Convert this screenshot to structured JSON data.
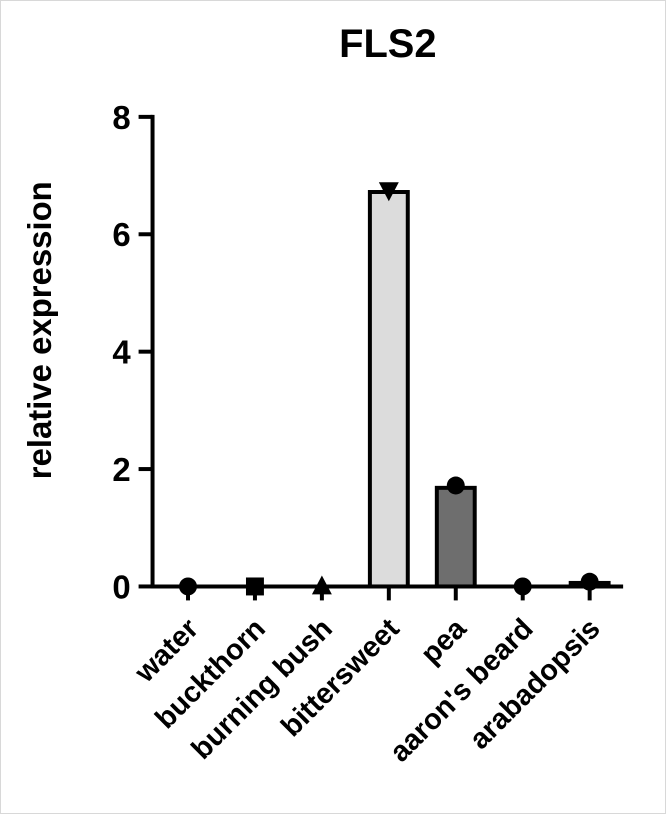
{
  "chart_data": {
    "type": "bar",
    "title": "FLS2",
    "xlabel": "",
    "ylabel": "relative expression",
    "ylim": [
      0,
      8
    ],
    "yticks": [
      0,
      2,
      4,
      6,
      8
    ],
    "grid": false,
    "categories": [
      "water",
      "buckthorn",
      "burning bush",
      "bittersweet",
      "pea",
      "aaron's beard",
      "arabadopsis"
    ],
    "values": [
      0,
      0,
      0,
      6.72,
      1.68,
      0,
      0.06
    ],
    "points": [
      0,
      0,
      0,
      6.75,
      1.72,
      0,
      0.08
    ],
    "markers": [
      "circle",
      "square",
      "triangle-up",
      "triangle-down",
      "circle",
      "circle",
      "circle"
    ],
    "bar_colors": [
      "#ffffff",
      "#ffffff",
      "#ffffff",
      "#dcdcdc",
      "#6e6e6e",
      "#ffffff",
      "#ffffff"
    ]
  }
}
